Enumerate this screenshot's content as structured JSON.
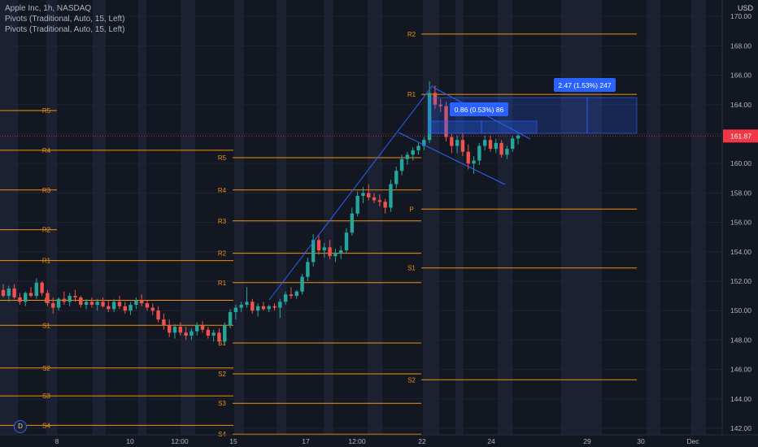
{
  "legend": {
    "symbol": "Apple Inc, 1h, NASDAQ",
    "indicator1": "Pivots (Traditional, Auto, 15, Left)",
    "indicator2": "Pivots (Traditional, Auto, 15, Left)"
  },
  "currency_label": "USD",
  "badge_label": "D",
  "colors": {
    "background": "#131722",
    "band": "#1c2132",
    "pivot": "#f0900c",
    "up": "#26a69a",
    "down": "#ef5350",
    "trendline": "#2962ff",
    "price_tag": "#f23645",
    "measure": "#2962ff"
  },
  "chart_data": {
    "type": "candlestick",
    "title": "Apple Inc, 1h, NASDAQ",
    "ylim": [
      141.5,
      171.5
    ],
    "y_ticks": [
      "142.00",
      "144.00",
      "146.00",
      "148.00",
      "150.00",
      "152.00",
      "154.00",
      "156.00",
      "158.00",
      "160.00",
      "162.00",
      "164.00",
      "166.00",
      "168.00",
      "170.00"
    ],
    "x_ticks": [
      "8",
      "10",
      "12:00",
      "15",
      "17",
      "12:00",
      "22",
      "24",
      "29",
      "30",
      "Dec"
    ],
    "last_price": "161.87",
    "pivot_levels": [
      {
        "label": "R5",
        "value": 163.6
      },
      {
        "label": "R4",
        "value": 160.9
      },
      {
        "label": "R3",
        "value": 158.2
      },
      {
        "label": "R2",
        "value": 155.5
      },
      {
        "label": "R1",
        "value": 153.4
      },
      {
        "label": "P",
        "value": 150.7
      },
      {
        "label": "S1",
        "value": 149.0
      },
      {
        "label": "S2",
        "value": 146.1
      },
      {
        "label": "S3",
        "value": 144.2
      },
      {
        "label": "S4",
        "value": 142.2
      },
      {
        "label": "R5",
        "value": 160.4
      },
      {
        "label": "R4",
        "value": 158.2
      },
      {
        "label": "R3",
        "value": 156.1
      },
      {
        "label": "R2",
        "value": 153.9
      },
      {
        "label": "R1",
        "value": 151.9
      },
      {
        "label": "S1",
        "value": 147.8
      },
      {
        "label": "S2",
        "value": 145.7
      },
      {
        "label": "S3",
        "value": 143.7
      },
      {
        "label": "S4",
        "value": 141.6
      },
      {
        "label": "R2",
        "value": 168.8
      },
      {
        "label": "R1",
        "value": 164.7
      },
      {
        "label": "P",
        "value": 156.9
      },
      {
        "label": "S1",
        "value": 152.9
      },
      {
        "label": "S2",
        "value": 145.3
      }
    ],
    "measurements": [
      {
        "label": "0.86 (0.53%) 86"
      },
      {
        "label": "2.47 (1.53%) 247"
      }
    ],
    "candles": [
      [
        151.4,
        151.8,
        150.9,
        151.0
      ],
      [
        151.0,
        151.7,
        150.6,
        151.5
      ],
      [
        151.5,
        151.8,
        150.8,
        150.9
      ],
      [
        150.9,
        151.2,
        150.4,
        150.6
      ],
      [
        150.6,
        151.3,
        150.3,
        151.2
      ],
      [
        151.2,
        151.6,
        150.9,
        151.0
      ],
      [
        151.0,
        152.2,
        150.8,
        151.9
      ],
      [
        151.9,
        152.0,
        151.0,
        151.2
      ],
      [
        151.2,
        151.4,
        150.3,
        150.5
      ],
      [
        150.5,
        150.9,
        149.8,
        150.2
      ],
      [
        150.2,
        150.9,
        150.0,
        150.8
      ],
      [
        150.8,
        151.3,
        150.4,
        150.6
      ],
      [
        150.6,
        151.2,
        150.3,
        151.0
      ],
      [
        151.0,
        151.4,
        150.6,
        150.9
      ],
      [
        150.9,
        151.0,
        150.2,
        150.4
      ],
      [
        150.4,
        150.8,
        150.1,
        150.6
      ],
      [
        150.6,
        150.9,
        150.2,
        150.4
      ],
      [
        150.4,
        150.8,
        150.0,
        150.6
      ],
      [
        150.6,
        150.9,
        150.2,
        150.3
      ],
      [
        150.3,
        150.7,
        149.9,
        150.1
      ],
      [
        150.1,
        150.8,
        149.9,
        150.6
      ],
      [
        150.6,
        151.0,
        150.1,
        150.3
      ],
      [
        150.3,
        150.6,
        149.8,
        150.0
      ],
      [
        150.0,
        150.6,
        149.7,
        150.4
      ],
      [
        150.4,
        150.9,
        150.1,
        150.7
      ],
      [
        150.7,
        151.1,
        150.3,
        150.5
      ],
      [
        150.5,
        150.7,
        150.0,
        150.2
      ],
      [
        150.2,
        150.5,
        149.7,
        150.0
      ],
      [
        150.0,
        150.3,
        149.2,
        149.4
      ],
      [
        149.4,
        149.8,
        148.7,
        149.0
      ],
      [
        149.0,
        149.4,
        148.2,
        148.5
      ],
      [
        148.5,
        149.1,
        148.1,
        148.9
      ],
      [
        148.9,
        149.2,
        148.3,
        148.5
      ],
      [
        148.5,
        148.9,
        148.0,
        148.3
      ],
      [
        148.3,
        148.8,
        148.0,
        148.6
      ],
      [
        148.6,
        149.2,
        148.3,
        149.0
      ],
      [
        149.0,
        149.3,
        148.5,
        148.7
      ],
      [
        148.7,
        148.9,
        148.1,
        148.3
      ],
      [
        148.3,
        148.7,
        147.9,
        148.5
      ],
      [
        148.5,
        148.8,
        147.6,
        147.9
      ],
      [
        147.9,
        149.2,
        147.7,
        149.0
      ],
      [
        149.0,
        150.1,
        148.8,
        149.9
      ],
      [
        149.9,
        150.4,
        149.4,
        150.2
      ],
      [
        150.2,
        150.6,
        149.9,
        150.4
      ],
      [
        150.4,
        151.6,
        150.2,
        150.6
      ],
      [
        150.6,
        150.8,
        149.8,
        150.0
      ],
      [
        150.0,
        150.5,
        149.6,
        150.3
      ],
      [
        150.3,
        150.6,
        150.0,
        150.1
      ],
      [
        150.1,
        150.4,
        149.9,
        150.3
      ],
      [
        150.3,
        150.5,
        150.0,
        150.2
      ],
      [
        150.2,
        150.8,
        149.5,
        150.6
      ],
      [
        150.6,
        151.3,
        150.4,
        151.1
      ],
      [
        151.1,
        151.6,
        150.8,
        151.0
      ],
      [
        151.0,
        151.4,
        150.8,
        151.3
      ],
      [
        151.3,
        152.5,
        151.1,
        152.3
      ],
      [
        152.3,
        153.6,
        152.0,
        153.3
      ],
      [
        153.3,
        155.2,
        153.0,
        154.8
      ],
      [
        154.8,
        155.1,
        153.8,
        154.1
      ],
      [
        154.1,
        154.6,
        153.6,
        154.3
      ],
      [
        154.3,
        154.8,
        153.5,
        153.7
      ],
      [
        153.7,
        154.2,
        153.3,
        153.9
      ],
      [
        153.9,
        154.4,
        153.5,
        154.1
      ],
      [
        154.1,
        155.6,
        153.9,
        155.3
      ],
      [
        155.3,
        157.0,
        155.1,
        156.6
      ],
      [
        156.6,
        158.1,
        156.4,
        157.8
      ],
      [
        157.8,
        158.4,
        157.3,
        158.0
      ],
      [
        158.0,
        158.6,
        157.5,
        157.7
      ],
      [
        157.7,
        158.0,
        157.3,
        157.5
      ],
      [
        157.5,
        157.9,
        157.1,
        157.4
      ],
      [
        157.4,
        157.6,
        156.6,
        157.0
      ],
      [
        157.0,
        158.9,
        156.7,
        158.6
      ],
      [
        158.6,
        159.8,
        158.3,
        159.5
      ],
      [
        159.5,
        160.6,
        159.2,
        160.3
      ],
      [
        160.3,
        160.8,
        159.9,
        160.6
      ],
      [
        160.6,
        161.1,
        160.2,
        160.9
      ],
      [
        160.9,
        161.4,
        160.6,
        161.2
      ],
      [
        161.2,
        161.8,
        160.9,
        161.6
      ],
      [
        161.6,
        165.6,
        161.4,
        164.8
      ],
      [
        164.8,
        165.3,
        163.7,
        164.0
      ],
      [
        164.0,
        164.4,
        163.5,
        163.9
      ],
      [
        163.9,
        164.2,
        161.5,
        161.8
      ],
      [
        161.8,
        162.0,
        160.7,
        161.2
      ],
      [
        161.2,
        161.9,
        160.7,
        161.6
      ],
      [
        161.6,
        162.1,
        160.5,
        160.8
      ],
      [
        160.8,
        161.3,
        159.6,
        160.0
      ],
      [
        160.0,
        160.5,
        159.3,
        160.2
      ],
      [
        160.2,
        161.4,
        159.9,
        161.2
      ],
      [
        161.2,
        161.9,
        160.9,
        161.6
      ],
      [
        161.6,
        161.9,
        160.8,
        161.0
      ],
      [
        161.0,
        161.7,
        160.7,
        161.4
      ],
      [
        161.4,
        161.6,
        160.4,
        160.6
      ],
      [
        160.6,
        161.2,
        160.3,
        161.0
      ],
      [
        161.0,
        161.9,
        160.8,
        161.7
      ],
      [
        161.7,
        162.0,
        161.3,
        161.9
      ]
    ]
  }
}
